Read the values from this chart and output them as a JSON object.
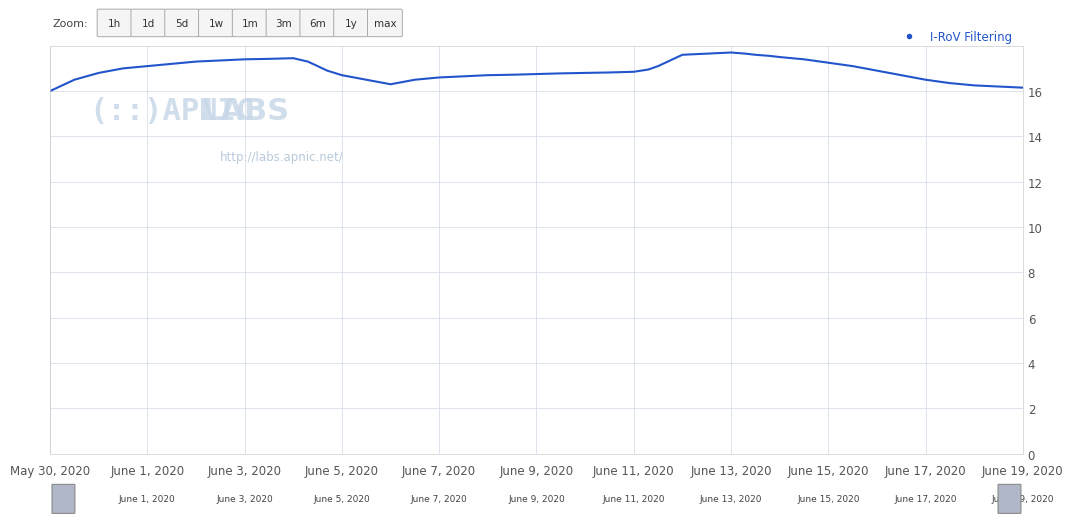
{
  "legend_label": "I-RoV Filtering",
  "legend_color": "#2255cc",
  "line_color": "#2255cc",
  "background_color": "#ffffff",
  "plot_bg_color": "#ffffff",
  "grid_color": "#d0d8e8",
  "axis_label_color": "#555555",
  "zoom_buttons": [
    "1h",
    "1d",
    "5d",
    "1w",
    "1m",
    "3m",
    "6m",
    "1y",
    "max"
  ],
  "ylim": [
    0,
    18
  ],
  "yticks": [
    0,
    2,
    4,
    6,
    8,
    10,
    12,
    14,
    16
  ],
  "x_labels": [
    "May 30, 2020",
    "June 1, 2020",
    "June 3, 2020",
    "June 5, 2020",
    "June 7, 2020",
    "June 9, 2020",
    "June 11, 2020",
    "June 13, 2020",
    "June 15, 2020",
    "June 17, 2020",
    "June 19, 2020"
  ],
  "x_days": [
    0,
    2,
    4,
    6,
    8,
    10,
    12,
    14,
    16,
    18,
    20
  ],
  "data_x": [
    0,
    0.5,
    1,
    1.5,
    2,
    2.5,
    3,
    3.5,
    4,
    4.5,
    5,
    5.3,
    5.5,
    5.7,
    6,
    6.5,
    7,
    7.5,
    8,
    8.5,
    9,
    9.5,
    10,
    10.5,
    11,
    11.5,
    12,
    12.3,
    12.5,
    12.8,
    13,
    13.5,
    14,
    14.3,
    14.5,
    14.8,
    15,
    15.5,
    16,
    16.5,
    17,
    17.5,
    18,
    18.5,
    19,
    19.5,
    20
  ],
  "data_y": [
    16.0,
    16.5,
    16.8,
    17.0,
    17.1,
    17.2,
    17.3,
    17.35,
    17.4,
    17.42,
    17.45,
    17.3,
    17.1,
    16.9,
    16.7,
    16.5,
    16.3,
    16.5,
    16.6,
    16.65,
    16.7,
    16.72,
    16.75,
    16.78,
    16.8,
    16.82,
    16.85,
    16.95,
    17.1,
    17.4,
    17.6,
    17.65,
    17.7,
    17.65,
    17.6,
    17.55,
    17.5,
    17.4,
    17.25,
    17.1,
    16.9,
    16.7,
    16.5,
    16.35,
    16.25,
    16.2,
    16.15
  ],
  "watermark_text": "http://labs.apnic.net/",
  "apnic_text1": "(::)APNIC",
  "apnic_text2": "LABS",
  "line_width": 1.5,
  "font_size_axis": 8.5,
  "font_size_legend": 8.5,
  "font_size_zoom": 7.5,
  "marker_size": 5,
  "scroll_bg": "#dce4f0",
  "scroll_handle_color": "#b0b8c8",
  "outer_border_color": "#cccccc"
}
